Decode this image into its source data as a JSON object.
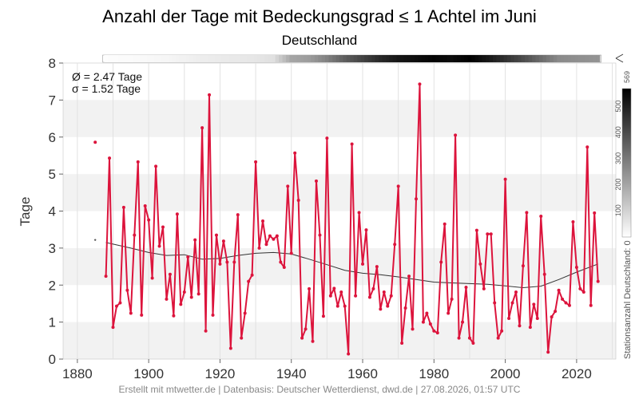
{
  "title": "Anzahl der Tage mit Bedeckungsgrad ≤ 1 Achtel im Juni",
  "subtitle": "Deutschland",
  "footer": "Erstellt mit mtwetter.de | Datenbasis: Deutscher Wetterdienst, dwd.de | 27.08.2026, 01:57 UTC",
  "stats": {
    "mean": "Ø = 2.47 Tage",
    "sigma": "σ = 1.52 Tage"
  },
  "colorbar": {
    "label": "Stationsanzahl Deutschland: 0",
    "max_label": "569",
    "ticks": [
      "100",
      "200",
      "300",
      "400",
      "500"
    ]
  },
  "colors": {
    "series": "#dc143c",
    "trend": "#333333",
    "band": "#f2f2f2"
  },
  "chart_data": {
    "type": "line",
    "ylabel": "Tage",
    "xlabel": "",
    "xlim": [
      1876,
      2031
    ],
    "ylim": [
      0,
      8
    ],
    "x_ticks": [
      "1880",
      "1900",
      "1920",
      "1940",
      "1960",
      "1980",
      "2000",
      "2020"
    ],
    "y_ticks": [
      "0",
      "1",
      "2",
      "3",
      "4",
      "5",
      "6",
      "7",
      "8"
    ],
    "grid": true,
    "series": [
      {
        "x": [
          1885,
          1888,
          1889,
          1890,
          1891,
          1892,
          1893,
          1894,
          1895,
          1896,
          1897,
          1898,
          1899,
          1900,
          1901,
          1902,
          1903,
          1904,
          1905,
          1906,
          1907,
          1908,
          1909,
          1910,
          1911,
          1912,
          1913,
          1914,
          1915,
          1916,
          1917,
          1918,
          1919,
          1920,
          1921,
          1922,
          1923,
          1924,
          1925,
          1926,
          1927,
          1928,
          1929,
          1930,
          1931,
          1932,
          1933,
          1934,
          1935,
          1936,
          1937,
          1938,
          1939,
          1940,
          1941,
          1942,
          1943,
          1944,
          1945,
          1946,
          1947,
          1948,
          1949,
          1950,
          1951,
          1952,
          1953,
          1954,
          1955,
          1956,
          1957,
          1958,
          1959,
          1960,
          1961,
          1962,
          1963,
          1964,
          1965,
          1966,
          1967,
          1968,
          1969,
          1970,
          1971,
          1972,
          1973,
          1974,
          1975,
          1976,
          1977,
          1978,
          1979,
          1980,
          1981,
          1982,
          1983,
          1984,
          1985,
          1986,
          1987,
          1988,
          1989,
          1990,
          1991,
          1992,
          1993,
          1994,
          1995,
          1996,
          1997,
          1998,
          1999,
          2000,
          2001,
          2002,
          2003,
          2004,
          2005,
          2006,
          2007,
          2008,
          2009,
          2010,
          2011,
          2012,
          2013,
          2014,
          2015,
          2016,
          2017,
          2018,
          2019,
          2020,
          2021,
          2022,
          2023,
          2024,
          2025,
          2026
        ],
        "values": [
          5.86,
          2.24,
          5.43,
          0.86,
          1.43,
          1.52,
          4.1,
          1.86,
          1.24,
          3.35,
          5.33,
          1.19,
          4.14,
          3.76,
          2.19,
          5.21,
          3.05,
          3.57,
          1.62,
          2.29,
          1.17,
          3.92,
          1.48,
          1.81,
          2.76,
          1.67,
          3.22,
          1.76,
          6.25,
          0.76,
          7.14,
          1.19,
          3.35,
          2.57,
          3.19,
          2.62,
          0.29,
          2.62,
          3.9,
          0.57,
          1.24,
          2.1,
          2.27,
          5.33,
          3.0,
          3.73,
          3.1,
          3.33,
          3.24,
          3.33,
          2.62,
          2.48,
          4.67,
          2.86,
          5.57,
          4.29,
          0.57,
          0.81,
          1.9,
          0.48,
          4.81,
          3.35,
          1.16,
          5.97,
          1.71,
          1.91,
          1.43,
          1.81,
          1.43,
          0.14,
          5.81,
          1.71,
          3.96,
          2.57,
          3.49,
          1.67,
          1.9,
          2.5,
          1.35,
          1.81,
          1.43,
          1.71,
          3.1,
          4.67,
          0.43,
          1.38,
          2.24,
          0.81,
          4.33,
          7.43,
          1.0,
          1.24,
          0.95,
          0.76,
          0.71,
          2.62,
          3.65,
          1.24,
          1.62,
          6.05,
          0.57,
          1.0,
          1.94,
          0.57,
          0.43,
          3.48,
          2.57,
          1.9,
          3.38,
          3.38,
          1.52,
          0.57,
          0.76,
          4.86,
          1.1,
          1.52,
          1.81,
          0.9,
          2.52,
          3.96,
          0.86,
          1.48,
          1.1,
          3.86,
          2.29,
          0.19,
          1.14,
          1.29,
          1.86,
          1.62,
          1.52,
          1.45,
          3.71,
          2.48,
          1.9,
          1.81,
          5.73,
          1.45,
          3.95,
          2.1
        ]
      }
    ],
    "trend": {
      "x": [
        1888,
        1895,
        1900,
        1905,
        1910,
        1915,
        1920,
        1925,
        1930,
        1935,
        1940,
        1945,
        1950,
        1955,
        1960,
        1965,
        1970,
        1975,
        1980,
        1985,
        1990,
        1995,
        2000,
        2005,
        2010,
        2015,
        2020,
        2026
      ],
      "values": [
        3.15,
        3.0,
        2.88,
        2.8,
        2.82,
        2.7,
        2.72,
        2.8,
        2.86,
        2.88,
        2.84,
        2.7,
        2.55,
        2.4,
        2.32,
        2.28,
        2.22,
        2.15,
        2.08,
        2.06,
        2.04,
        2.02,
        1.98,
        1.93,
        1.97,
        2.15,
        2.35,
        2.57
      ]
    },
    "outlier_dot": {
      "x": 1885,
      "value": 3.22
    },
    "station_count": {
      "min": 0,
      "max": 569,
      "years": [
        1888,
        1895,
        1900,
        1905,
        1910,
        1915,
        1920,
        1925,
        1930,
        1935,
        1940,
        1945,
        1950,
        1955,
        1960,
        1965,
        1970,
        1975,
        1980,
        1985,
        1990,
        1995,
        2000,
        2005,
        2010,
        2015,
        2020,
        2026
      ],
      "values": [
        5,
        10,
        15,
        20,
        30,
        40,
        45,
        50,
        55,
        70,
        200,
        220,
        280,
        360,
        420,
        480,
        520,
        540,
        560,
        540,
        569,
        520,
        460,
        400,
        330,
        260,
        250,
        240
      ]
    }
  }
}
